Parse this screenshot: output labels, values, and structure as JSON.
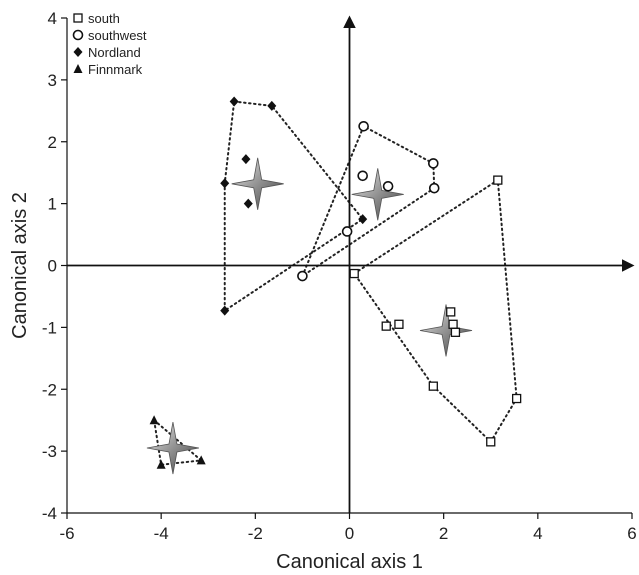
{
  "chart_data": {
    "type": "scatter",
    "xlabel": "Canonical axis 1",
    "ylabel": "Canonical axis 2",
    "xlim": [
      -6,
      6
    ],
    "ylim": [
      -4,
      4
    ],
    "xticks": [
      -6,
      -4,
      -2,
      0,
      2,
      4,
      6
    ],
    "yticks": [
      -4,
      -3,
      -2,
      -1,
      0,
      1,
      2,
      3,
      4
    ],
    "xtick_labels": [
      "-6",
      "-4",
      "-2",
      "0",
      "2",
      "4",
      "6"
    ],
    "ytick_labels": [
      "-4",
      "-3",
      "-2",
      "-1",
      "0",
      "1",
      "2",
      "3",
      "4"
    ],
    "legend_position": "top-left",
    "series": [
      {
        "name": "south",
        "marker": "open-square",
        "points": [
          [
            0.1,
            -0.13
          ],
          [
            0.78,
            -0.98
          ],
          [
            1.05,
            -0.95
          ],
          [
            2.15,
            -0.75
          ],
          [
            2.2,
            -0.95
          ],
          [
            2.25,
            -1.08
          ],
          [
            1.78,
            -1.95
          ],
          [
            3.0,
            -2.85
          ],
          [
            3.55,
            -2.15
          ],
          [
            3.15,
            1.38
          ]
        ],
        "hull": [
          [
            0.1,
            -0.13
          ],
          [
            3.15,
            1.38
          ],
          [
            3.55,
            -2.15
          ],
          [
            3.0,
            -2.85
          ],
          [
            1.78,
            -1.95
          ],
          [
            0.1,
            -0.13
          ]
        ],
        "centroid": [
          2.05,
          -1.05
        ]
      },
      {
        "name": "southwest",
        "marker": "open-circle",
        "points": [
          [
            -1.0,
            -0.17
          ],
          [
            -0.05,
            0.55
          ],
          [
            0.3,
            2.25
          ],
          [
            0.28,
            1.45
          ],
          [
            0.82,
            1.28
          ],
          [
            1.78,
            1.65
          ],
          [
            1.8,
            1.25
          ]
        ],
        "hull": [
          [
            -1.0,
            -0.17
          ],
          [
            0.3,
            2.25
          ],
          [
            1.78,
            1.65
          ],
          [
            1.8,
            1.25
          ],
          [
            -1.0,
            -0.17
          ]
        ],
        "centroid": [
          0.6,
          1.15
        ]
      },
      {
        "name": "Nordland",
        "marker": "filled-diamond",
        "points": [
          [
            -2.45,
            2.65
          ],
          [
            -1.65,
            2.58
          ],
          [
            -2.2,
            1.72
          ],
          [
            -2.65,
            1.33
          ],
          [
            -2.15,
            1.0
          ],
          [
            -2.65,
            -0.73
          ],
          [
            0.28,
            0.75
          ]
        ],
        "hull": [
          [
            -2.45,
            2.65
          ],
          [
            -1.65,
            2.58
          ],
          [
            0.28,
            0.75
          ],
          [
            -2.65,
            -0.73
          ],
          [
            -2.65,
            1.33
          ],
          [
            -2.45,
            2.65
          ]
        ],
        "centroid": [
          -1.95,
          1.32
        ]
      },
      {
        "name": "Finnmark",
        "marker": "filled-triangle",
        "points": [
          [
            -4.15,
            -2.5
          ],
          [
            -4.0,
            -3.22
          ],
          [
            -3.15,
            -3.15
          ]
        ],
        "hull": [
          [
            -4.15,
            -2.5
          ],
          [
            -3.15,
            -3.15
          ],
          [
            -4.0,
            -3.22
          ],
          [
            -4.15,
            -2.5
          ]
        ],
        "centroid": [
          -3.75,
          -2.95
        ]
      }
    ]
  }
}
